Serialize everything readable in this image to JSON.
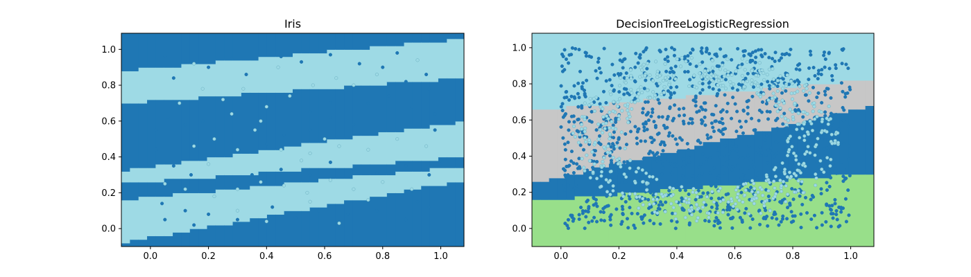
{
  "colors": {
    "dark_blue": "#1f77b4",
    "light_blue": "#9edae5",
    "gray": "#c7c7c7",
    "green": "#98df8a",
    "background": "#ffffff"
  },
  "chart_data": [
    {
      "type": "scatter",
      "title": "Iris",
      "xlabel": "",
      "ylabel": "",
      "xlim": [
        -0.1,
        1.08
      ],
      "ylim": [
        -0.1,
        1.09
      ],
      "xticks": [
        "0.0",
        "0.2",
        "0.4",
        "0.6",
        "0.8",
        "1.0"
      ],
      "yticks": [
        "0.0",
        "0.2",
        "0.4",
        "0.6",
        "0.8",
        "1.0"
      ],
      "grid": false,
      "legend": "none",
      "regions": {
        "description": "decision region color by y-band (from bottom): dark, light, dark, light, dark, light, dark; bands slope upward with x",
        "boundaries": [
          {
            "x": [
              -0.1,
              1.08
            ],
            "y": [
              -0.08,
              0.27
            ]
          },
          {
            "x": [
              -0.1,
              1.08
            ],
            "y": [
              0.16,
              0.35
            ]
          },
          {
            "x": [
              -0.1,
              1.08
            ],
            "y": [
              0.25,
              0.4
            ]
          },
          {
            "x": [
              -0.1,
              1.08
            ],
            "y": [
              0.32,
              0.6
            ]
          },
          {
            "x": [
              -0.1,
              1.08
            ],
            "y": [
              0.7,
              0.84
            ]
          },
          {
            "x": [
              -0.1,
              1.08
            ],
            "y": [
              0.88,
              1.06
            ]
          }
        ],
        "band_colors": [
          "dark_blue",
          "light_blue",
          "dark_blue",
          "light_blue",
          "dark_blue",
          "light_blue",
          "dark_blue"
        ]
      },
      "series": [
        {
          "color": "dark_blue",
          "points": [
            [
              0.05,
              0.96
            ],
            [
              0.12,
              0.93
            ],
            [
              0.08,
              0.84
            ],
            [
              0.2,
              0.9
            ],
            [
              0.28,
              0.95
            ],
            [
              0.33,
              0.86
            ],
            [
              0.45,
              0.96
            ],
            [
              0.52,
              0.93
            ],
            [
              0.62,
              0.97
            ],
            [
              0.72,
              0.92
            ],
            [
              0.85,
              0.98
            ],
            [
              0.95,
              0.86
            ],
            [
              0.02,
              0.55
            ],
            [
              0.06,
              0.62
            ],
            [
              0.12,
              0.58
            ],
            [
              0.18,
              0.6
            ],
            [
              0.02,
              0.44
            ],
            [
              0.08,
              0.35
            ],
            [
              0.14,
              0.3
            ],
            [
              0.24,
              0.28
            ],
            [
              0.35,
              0.3
            ],
            [
              0.45,
              0.33
            ],
            [
              0.55,
              0.3
            ],
            [
              0.62,
              0.37
            ],
            [
              0.7,
              0.33
            ],
            [
              0.78,
              0.31
            ],
            [
              0.88,
              0.35
            ],
            [
              0.96,
              0.3
            ],
            [
              0.4,
              0.47
            ],
            [
              0.46,
              0.52
            ],
            [
              0.55,
              0.55
            ],
            [
              0.62,
              0.62
            ],
            [
              0.7,
              0.58
            ],
            [
              0.75,
              0.7
            ],
            [
              0.82,
              0.74
            ],
            [
              0.9,
              0.68
            ],
            [
              0.98,
              0.64
            ],
            [
              0.04,
              0.14
            ],
            [
              0.12,
              0.1
            ],
            [
              0.2,
              0.08
            ],
            [
              0.3,
              0.05
            ],
            [
              0.05,
              0.05
            ],
            [
              0.15,
              0.02
            ],
            [
              0.42,
              0.12
            ],
            [
              0.5,
              0.06
            ],
            [
              0.58,
              0.1
            ],
            [
              0.68,
              0.08
            ],
            [
              0.78,
              0.1
            ],
            [
              0.88,
              0.05
            ],
            [
              0.96,
              0.12
            ],
            [
              0.92,
              0.15
            ],
            [
              1.0,
              0.38
            ],
            [
              0.98,
              0.55
            ],
            [
              0.96,
              0.78
            ],
            [
              0.88,
              0.82
            ],
            [
              0.8,
              0.9
            ],
            [
              0.62,
              0.7
            ],
            [
              0.55,
              0.65
            ]
          ]
        },
        {
          "color": "light_blue",
          "points": [
            [
              0.1,
              0.7
            ],
            [
              0.18,
              0.78
            ],
            [
              0.25,
              0.72
            ],
            [
              0.32,
              0.78
            ],
            [
              0.28,
              0.64
            ],
            [
              0.36,
              0.55
            ],
            [
              0.22,
              0.5
            ],
            [
              0.15,
              0.46
            ],
            [
              0.3,
              0.44
            ],
            [
              0.4,
              0.68
            ],
            [
              0.48,
              0.74
            ],
            [
              0.56,
              0.8
            ],
            [
              0.64,
              0.84
            ],
            [
              0.7,
              0.8
            ],
            [
              0.78,
              0.86
            ],
            [
              0.05,
              0.25
            ],
            [
              0.12,
              0.22
            ],
            [
              0.22,
              0.18
            ],
            [
              0.3,
              0.22
            ],
            [
              0.38,
              0.26
            ],
            [
              0.46,
              0.24
            ],
            [
              0.54,
              0.2
            ],
            [
              0.62,
              0.27
            ],
            [
              0.7,
              0.22
            ],
            [
              0.8,
              0.26
            ],
            [
              0.9,
              0.22
            ],
            [
              0.45,
              0.44
            ],
            [
              0.55,
              0.42
            ],
            [
              0.65,
              0.46
            ],
            [
              0.75,
              0.44
            ],
            [
              0.85,
              0.5
            ],
            [
              0.95,
              0.46
            ],
            [
              0.3,
              0.1
            ],
            [
              0.4,
              0.04
            ],
            [
              0.55,
              0.15
            ],
            [
              0.65,
              0.03
            ],
            [
              0.75,
              0.16
            ],
            [
              0.2,
              0.36
            ],
            [
              0.52,
              0.38
            ],
            [
              0.6,
              0.5
            ],
            [
              0.38,
              0.6
            ],
            [
              0.44,
              0.9
            ],
            [
              0.15,
              0.92
            ],
            [
              0.92,
              0.94
            ]
          ]
        }
      ]
    },
    {
      "type": "scatter",
      "title": "DecisionTreeLogisticRegression",
      "xlabel": "",
      "ylabel": "",
      "xlim": [
        -0.1,
        1.08
      ],
      "ylim": [
        -0.1,
        1.08
      ],
      "xticks": [
        "0.0",
        "0.2",
        "0.4",
        "0.6",
        "0.8",
        "1.0"
      ],
      "yticks": [
        "0.0",
        "0.2",
        "0.4",
        "0.6",
        "0.8",
        "1.0"
      ],
      "grid": false,
      "legend": "none",
      "regions": {
        "description": "decision region color by y-band (from bottom): green, dark blue, gray, light blue; bands slope upward with x",
        "boundaries": [
          {
            "x": [
              -0.1,
              1.08
            ],
            "y": [
              0.15,
              0.31
            ]
          },
          {
            "x": [
              -0.1,
              1.08
            ],
            "y": [
              0.25,
              0.68
            ]
          },
          {
            "x": [
              -0.1,
              1.08
            ],
            "y": [
              0.65,
              0.83
            ]
          }
        ],
        "band_colors": [
          "green",
          "dark_blue",
          "gray",
          "light_blue"
        ]
      },
      "series": [
        {
          "color": "dark_blue",
          "description": "dense uniform cloud of about 1200 points filling x in [0, 1], y in [0, 1]",
          "count": 1200,
          "x_range": [
            0,
            1
          ],
          "y_range": [
            0,
            1
          ]
        },
        {
          "color": "light_blue",
          "description": "ring-shaped cluster of about 550 points centered near (0.5, 0.5)",
          "count": 550,
          "center": [
            0.5,
            0.5
          ],
          "radius_range": [
            0.28,
            0.46
          ]
        }
      ]
    }
  ]
}
